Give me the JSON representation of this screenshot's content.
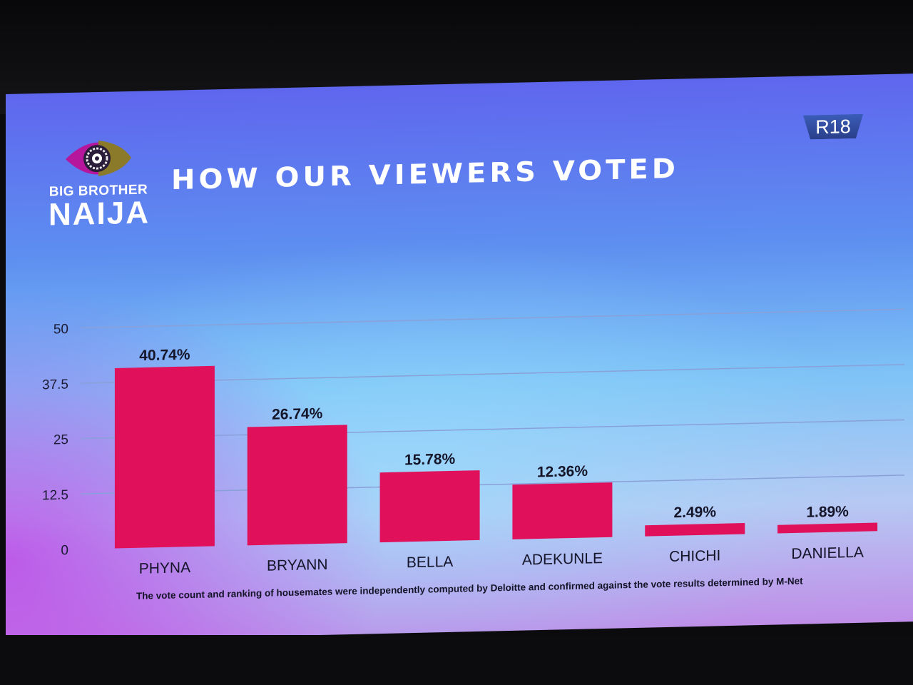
{
  "brand": {
    "line1": "BIG BROTHER",
    "line2": "NAIJA"
  },
  "title": "HOW OUR VIEWERS VOTED",
  "rating_badge": "R18",
  "footnote": "The vote count and ranking of housemates were independently computed by Deloitte and confirmed against the vote results determined by M-Net",
  "colors": {
    "bar": "#e0105a",
    "eye_outer": "#b5169b",
    "eye_iris": "#8a7a2a"
  },
  "chart_data": {
    "type": "bar",
    "categories": [
      "PHYNA",
      "BRYANN",
      "BELLA",
      "ADEKUNLE",
      "CHICHI",
      "DANIELLA"
    ],
    "values": [
      40.74,
      26.74,
      15.78,
      12.36,
      2.49,
      1.89
    ],
    "value_labels": [
      "40.74%",
      "26.74%",
      "15.78%",
      "12.36%",
      "2.49%",
      "1.89%"
    ],
    "ylim": [
      0,
      50
    ],
    "yticks": [
      "0",
      "12.5",
      "25",
      "37.5",
      "50"
    ],
    "ytick_values": [
      0,
      12.5,
      25,
      37.5,
      50
    ],
    "grid": true,
    "legend": "none"
  }
}
